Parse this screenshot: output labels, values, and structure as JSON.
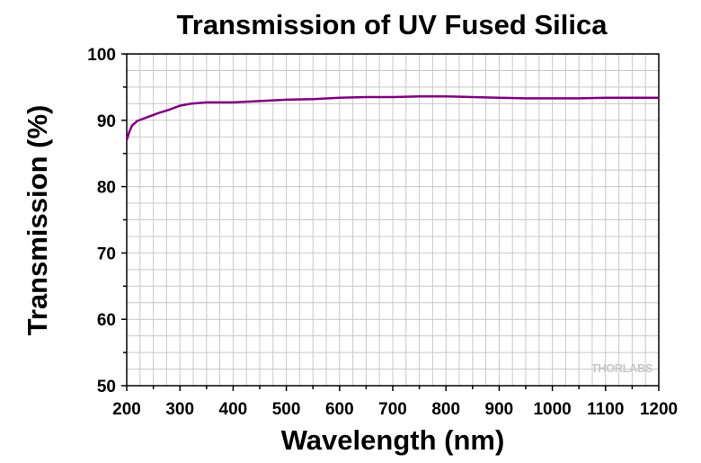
{
  "chart_data": {
    "type": "line",
    "title": "Transmission of UV Fused Silica",
    "xlabel": "Wavelength (nm)",
    "ylabel": "Transmission (%)",
    "xlim": [
      200,
      1200
    ],
    "ylim": [
      50,
      100
    ],
    "xticks": [
      "200",
      "300",
      "400",
      "500",
      "600",
      "700",
      "800",
      "900",
      "1000",
      "1100",
      "1200"
    ],
    "yticks": [
      "50",
      "60",
      "70",
      "80",
      "90",
      "100"
    ],
    "grid": true,
    "line_color": "#800080",
    "series": [
      {
        "x": [
          200,
          205,
          210,
          220,
          240,
          260,
          280,
          300,
          320,
          350,
          400,
          450,
          500,
          550,
          600,
          650,
          700,
          750,
          800,
          850,
          900,
          950,
          1000,
          1050,
          1100,
          1150,
          1200
        ],
        "values": [
          87.0,
          88.3,
          89.2,
          89.9,
          90.5,
          91.1,
          91.6,
          92.2,
          92.5,
          92.7,
          92.7,
          92.9,
          93.1,
          93.2,
          93.4,
          93.5,
          93.5,
          93.6,
          93.6,
          93.5,
          93.4,
          93.3,
          93.3,
          93.3,
          93.4,
          93.4,
          93.4
        ]
      }
    ]
  },
  "watermark": {
    "text": "THORLABS"
  }
}
